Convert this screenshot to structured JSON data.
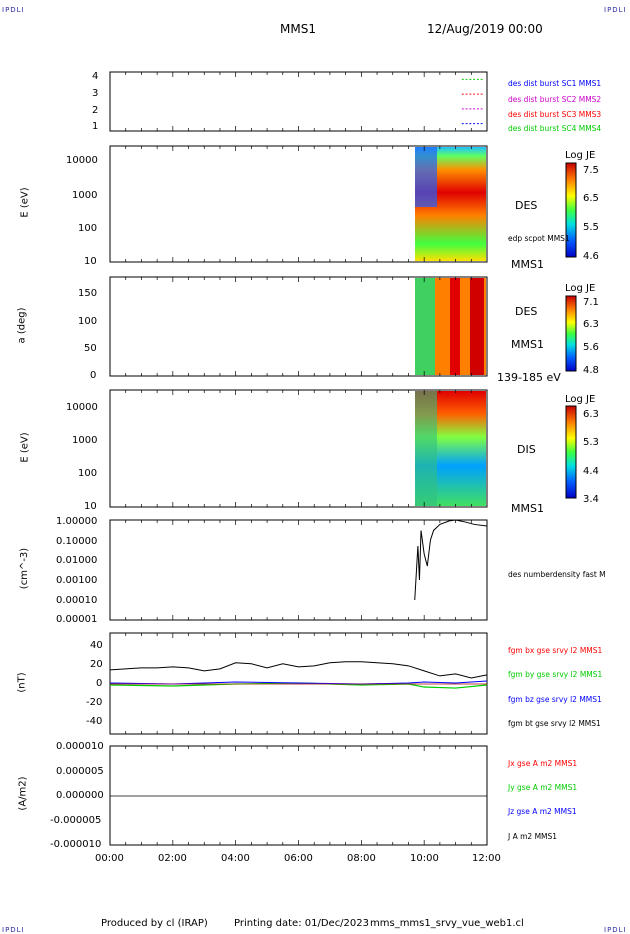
{
  "header": {
    "corner_label": "IPDLI",
    "spacecraft": "MMS1",
    "datetime": "12/Aug/2019 00:00"
  },
  "footer": {
    "produced_by": "Produced by cl (IRAP)",
    "printing_date": "Printing date: 01/Dec/2023",
    "filename": "mms_mms1_srvy_vue_web1.cl"
  },
  "x_axis": {
    "ticks": [
      "00:00",
      "02:00",
      "04:00",
      "06:00",
      "08:00",
      "10:00",
      "12:00"
    ],
    "range_hours": [
      0,
      12
    ]
  },
  "colors": {
    "blue": "#0000ff",
    "magenta": "#cc00cc",
    "red": "#ff0000",
    "green": "#00cc00",
    "black": "#000000"
  },
  "panels": {
    "dist": {
      "yticks": [
        "1",
        "2",
        "3",
        "4"
      ],
      "legend": [
        {
          "text": "des dist burst SC1 MMS1",
          "color": "#0000ff"
        },
        {
          "text": "des dist burst SC2 MMS2",
          "color": "#cc00cc"
        },
        {
          "text": "des dist burst SC3 MMS3",
          "color": "#ff0000"
        },
        {
          "text": "des dist burst SC4 MMS4",
          "color": "#00cc00"
        }
      ]
    },
    "des_energy": {
      "ylabel": "E (eV)",
      "yticks": [
        "10000",
        "1000",
        "100",
        "10"
      ],
      "right_label": "DES",
      "below_label": "MMS1",
      "side_note": "edp scpot MMS1",
      "colorbar": {
        "title": "Log JE",
        "ticks": [
          "7.5",
          "6.5",
          "5.5",
          "4.6"
        ]
      }
    },
    "des_pitch": {
      "ylabel": "a (deg)",
      "yticks": [
        "150",
        "100",
        "50",
        "0"
      ],
      "right_label": "DES",
      "right_label2": "MMS1",
      "below_label": "139-185 eV",
      "colorbar": {
        "title": "Log JE",
        "ticks": [
          "7.1",
          "6.3",
          "5.6",
          "4.8"
        ]
      }
    },
    "dis_energy": {
      "ylabel": "E (eV)",
      "yticks": [
        "10000",
        "1000",
        "100",
        "10"
      ],
      "right_label": "DIS",
      "below_label": "MMS1",
      "colorbar": {
        "title": "Log JE",
        "ticks": [
          "6.3",
          "5.3",
          "4.4",
          "3.4"
        ]
      }
    },
    "density": {
      "ylabel": "(cm^-3)",
      "yticks": [
        "1.00000",
        "0.10000",
        "0.01000",
        "0.00100",
        "0.00010",
        "0.00001"
      ],
      "legend": "des numberdensity fast M"
    },
    "bfield": {
      "ylabel": "(nT)",
      "yticks": [
        "40",
        "20",
        "0",
        "-20",
        "-40"
      ],
      "legend": [
        {
          "text": "fgm bx gse srvy l2 MMS1",
          "color": "#ff0000"
        },
        {
          "text": "fgm by gse srvy l2 MMS1",
          "color": "#00cc00"
        },
        {
          "text": "fgm bz gse srvy l2 MMS1",
          "color": "#0000ff"
        },
        {
          "text": "fgm bt gse srvy l2 MMS1",
          "color": "#000000"
        }
      ]
    },
    "current": {
      "ylabel": "(A/m2)",
      "yticks": [
        "0.000010",
        "0.000005",
        "0.000000",
        "-0.000005",
        "-0.000010"
      ],
      "legend": [
        {
          "text": "Jx gse A m2 MMS1",
          "color": "#ff0000"
        },
        {
          "text": "Jy gse A m2 MMS1",
          "color": "#00cc00"
        },
        {
          "text": "Jz gse A m2 MMS1",
          "color": "#0000ff"
        },
        {
          "text": "J A m2 MMS1",
          "color": "#000000"
        }
      ]
    }
  },
  "chart_data": {
    "type": "line",
    "x_unit": "UT hours on 12/Aug/2019",
    "data_coverage_hours": [
      9.6,
      12.0
    ],
    "density_series": {
      "name": "des numberdensity fast M",
      "x": [
        9.7,
        9.8,
        9.85,
        9.9,
        10.0,
        10.1,
        10.2,
        10.3,
        10.5,
        10.8,
        11.0,
        11.3,
        11.6,
        12.0
      ],
      "y": [
        0.0001,
        0.05,
        0.001,
        0.3,
        0.02,
        0.005,
        0.1,
        0.3,
        0.6,
        0.9,
        1.0,
        0.8,
        0.6,
        0.5
      ]
    },
    "bt_series": {
      "name": "fgm bt gse srvy l2 MMS1",
      "x": [
        0,
        0.5,
        1,
        1.5,
        2,
        2.5,
        3,
        3.5,
        4,
        4.5,
        5,
        5.5,
        6,
        6.5,
        7,
        7.5,
        8,
        8.5,
        9,
        9.5,
        10,
        10.5,
        11,
        11.5,
        12
      ],
      "y": [
        14,
        15,
        16,
        16,
        17,
        16,
        13,
        15,
        21,
        20,
        16,
        20,
        17,
        18,
        21,
        22,
        22,
        21,
        20,
        18,
        13,
        8,
        10,
        6,
        9
      ]
    },
    "bx_series": {
      "name": "fgm bx gse srvy l2 MMS1",
      "x": [
        0,
        12
      ],
      "y": [
        0,
        0
      ]
    },
    "by_series": {
      "name": "fgm by gse srvy l2 MMS1",
      "x": [
        0,
        2,
        4,
        6,
        8,
        9.5,
        10,
        11,
        12
      ],
      "y": [
        -1,
        -2,
        0,
        1,
        -1,
        0,
        -3,
        -4,
        -1
      ]
    },
    "bz_series": {
      "name": "fgm bz gse srvy l2 MMS1",
      "x": [
        0,
        2,
        4,
        6,
        8,
        9.5,
        10,
        11,
        12
      ],
      "y": [
        1,
        0,
        2,
        1,
        0,
        1,
        2,
        1,
        3
      ]
    }
  }
}
